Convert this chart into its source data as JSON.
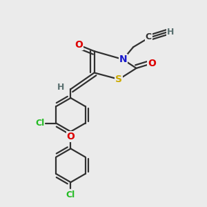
{
  "bg_color": "#ebebeb",
  "atom_colors": {
    "C": "#303030",
    "H": "#5a7070",
    "N": "#1818cc",
    "O": "#dd0000",
    "S": "#ccaa00",
    "Cl": "#22bb22"
  },
  "bond_color": "#303030",
  "bond_width": 1.6,
  "font_size_atom": 10,
  "font_size_small": 9,
  "font_size_H": 9
}
